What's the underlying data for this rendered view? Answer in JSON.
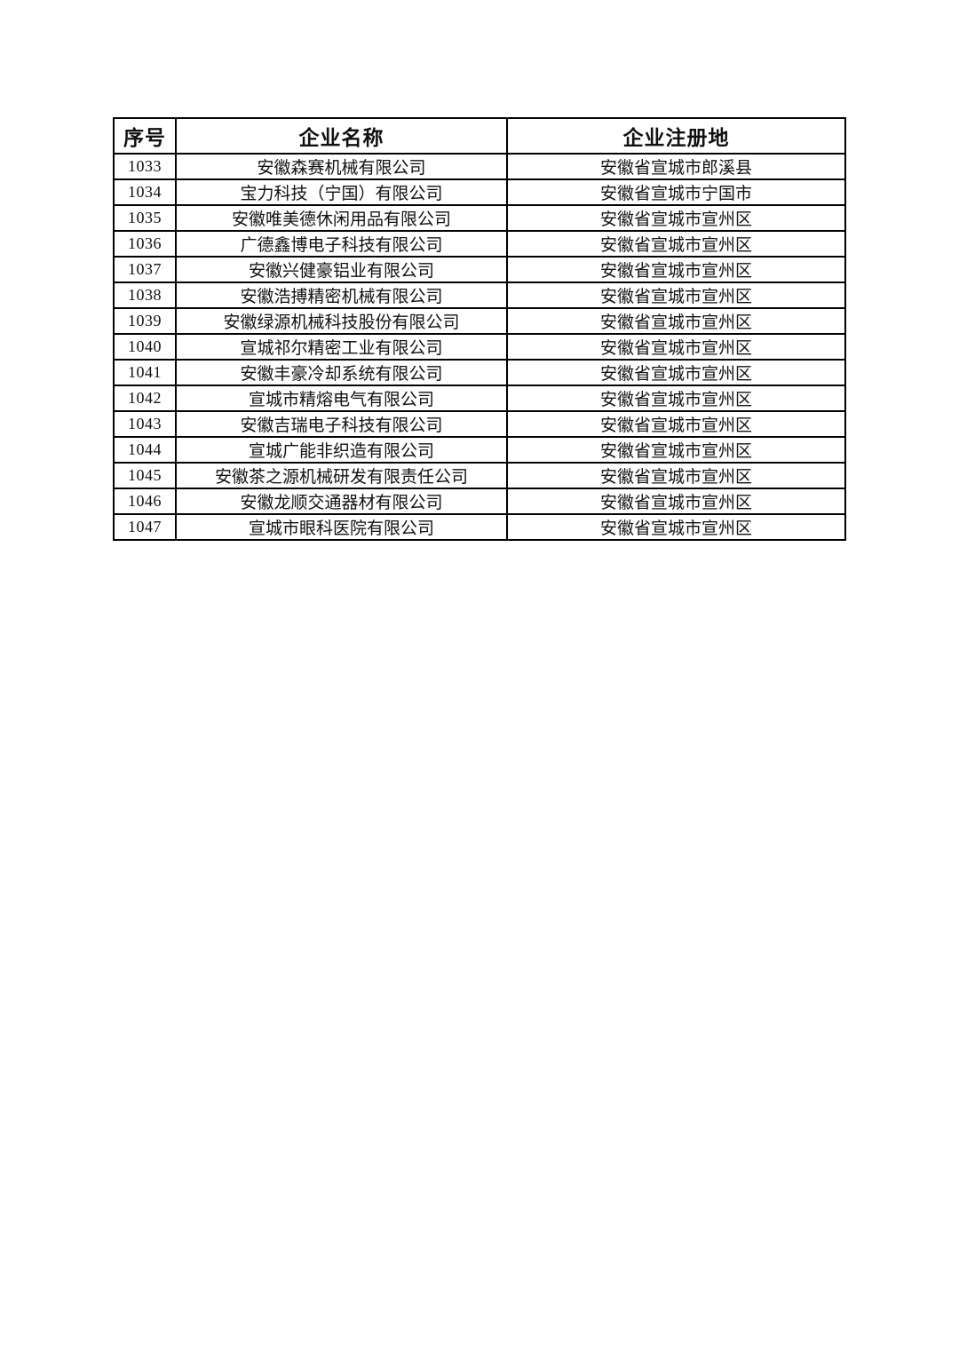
{
  "table": {
    "headers": {
      "no": "序号",
      "name": "企业名称",
      "location": "企业注册地"
    },
    "rows": [
      {
        "no": "1033",
        "name": "安徽森赛机械有限公司",
        "location": "安徽省宣城市郎溪县"
      },
      {
        "no": "1034",
        "name": "宝力科技（宁国）有限公司",
        "location": "安徽省宣城市宁国市"
      },
      {
        "no": "1035",
        "name": "安徽唯美德休闲用品有限公司",
        "location": "安徽省宣城市宣州区"
      },
      {
        "no": "1036",
        "name": "广德鑫博电子科技有限公司",
        "location": "安徽省宣城市宣州区"
      },
      {
        "no": "1037",
        "name": "安徽兴健豪铝业有限公司",
        "location": "安徽省宣城市宣州区"
      },
      {
        "no": "1038",
        "name": "安徽浩搏精密机械有限公司",
        "location": "安徽省宣城市宣州区"
      },
      {
        "no": "1039",
        "name": "安徽绿源机械科技股份有限公司",
        "location": "安徽省宣城市宣州区"
      },
      {
        "no": "1040",
        "name": "宣城祁尔精密工业有限公司",
        "location": "安徽省宣城市宣州区"
      },
      {
        "no": "1041",
        "name": "安徽丰豪冷却系统有限公司",
        "location": "安徽省宣城市宣州区"
      },
      {
        "no": "1042",
        "name": "宣城市精熔电气有限公司",
        "location": "安徽省宣城市宣州区"
      },
      {
        "no": "1043",
        "name": "安徽吉瑞电子科技有限公司",
        "location": "安徽省宣城市宣州区"
      },
      {
        "no": "1044",
        "name": "宣城广能非织造有限公司",
        "location": "安徽省宣城市宣州区"
      },
      {
        "no": "1045",
        "name": "安徽茶之源机械研发有限责任公司",
        "location": "安徽省宣城市宣州区"
      },
      {
        "no": "1046",
        "name": "安徽龙顺交通器材有限公司",
        "location": "安徽省宣城市宣州区"
      },
      {
        "no": "1047",
        "name": "宣城市眼科医院有限公司",
        "location": "安徽省宣城市宣州区"
      }
    ],
    "colors": {
      "border": "#000000",
      "text": "#111111",
      "background": "#ffffff"
    }
  }
}
